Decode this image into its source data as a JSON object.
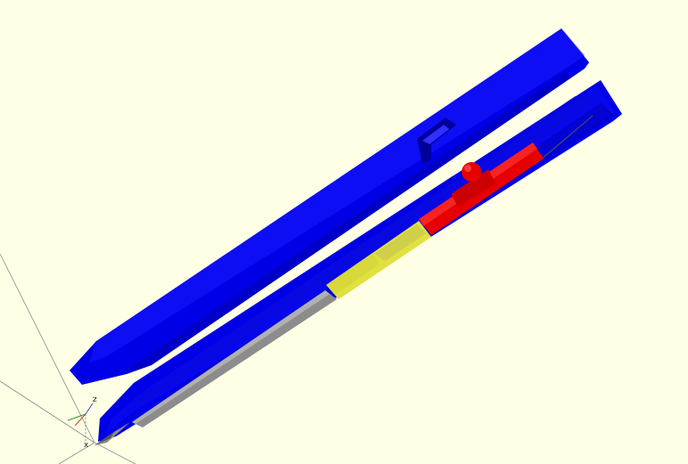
{
  "viewport": {
    "background_color": "#ffffe5",
    "axes": {
      "labels": {
        "z": "z",
        "y": "y",
        "x": "x"
      },
      "colors": {
        "x": "#d14040",
        "y": "#2a9a2a",
        "z": "#3a4ad8",
        "guide": "#8a8a8a"
      }
    },
    "model": {
      "parts": [
        {
          "name": "outer-shell",
          "color": "#0000e6"
        },
        {
          "name": "inner-shell-cutaway",
          "color": "#0000e6"
        },
        {
          "name": "refill-tube",
          "color": "#8c8c8c"
        },
        {
          "name": "ink-section",
          "color": "#e0e040"
        },
        {
          "name": "push-mechanism",
          "color": "#e60000"
        }
      ]
    }
  }
}
